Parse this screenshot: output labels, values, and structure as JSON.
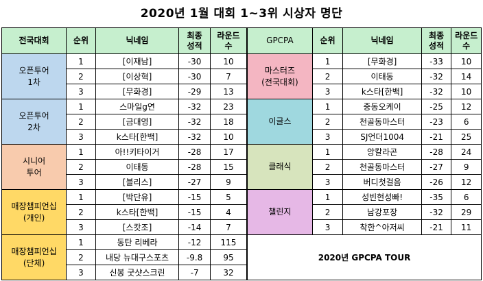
{
  "title": "2020년 1월 대회 1~3위 시상자 명단",
  "footer": "2020년 GPCPA TOUR",
  "left_headers": [
    "전국대회",
    "순위",
    "닉네임",
    "최종\n성적",
    "라운드\n수"
  ],
  "right_headers": [
    "GPCPA",
    "순위",
    "닉네임",
    "최종\n성적",
    "라운드\n수"
  ],
  "left_groups": [
    {
      "name": "오픈투어\n1차",
      "color": "#bdd7ee",
      "rows": [
        {
          "rank": "1",
          "nick": "[이재남]",
          "score": "-30",
          "rounds": "10"
        },
        {
          "rank": "2",
          "nick": "[이상혁]",
          "score": "-30",
          "rounds": "7"
        },
        {
          "rank": "3",
          "nick": "[무화경]",
          "score": "-29",
          "rounds": "13"
        }
      ]
    },
    {
      "name": "오픈투어\n2차",
      "color": "#bdd7ee",
      "rows": [
        {
          "rank": "1",
          "nick": "스마일g연",
          "score": "-32",
          "rounds": "23"
        },
        {
          "rank": "2",
          "nick": "[금대영]",
          "score": "-32",
          "rounds": "18"
        },
        {
          "rank": "3",
          "nick": "k스타[한백]",
          "score": "-32",
          "rounds": "10"
        }
      ]
    },
    {
      "name": "시니어\n투어",
      "color": "#f8cbad",
      "rows": [
        {
          "rank": "1",
          "nick": "아!!키타이거",
          "score": "-28",
          "rounds": "17"
        },
        {
          "rank": "2",
          "nick": "이태동",
          "score": "-28",
          "rounds": "15"
        },
        {
          "rank": "3",
          "nick": "[블리스]",
          "score": "-27",
          "rounds": "9"
        }
      ]
    },
    {
      "name": "매장챔피언십\n(개인)",
      "color": "#ffd966",
      "rows": [
        {
          "rank": "1",
          "nick": "[박단유]",
          "score": "-15",
          "rounds": "5"
        },
        {
          "rank": "2",
          "nick": "k스타[한백]",
          "score": "-15",
          "rounds": "4"
        },
        {
          "rank": "3",
          "nick": "[스캇조]",
          "score": "-14",
          "rounds": "7"
        }
      ]
    },
    {
      "name": "매장챔피언십\n(단체)",
      "color": "#ffd966",
      "rows": [
        {
          "rank": "1",
          "nick": "동탄 리베라",
          "score": "-12",
          "rounds": "115"
        },
        {
          "rank": "2",
          "nick": "내당 뉴대구스포츠",
          "score": "-9.8",
          "rounds": "95"
        },
        {
          "rank": "3",
          "nick": "신봉 굿샷스크린",
          "score": "-7",
          "rounds": "32"
        }
      ]
    }
  ],
  "right_groups": [
    {
      "name": "마스터즈\n(전국대회)",
      "color": "#f4b6c2",
      "rows": [
        {
          "rank": "1",
          "nick": "[무화경]",
          "score": "-33",
          "rounds": "10"
        },
        {
          "rank": "2",
          "nick": "이태동",
          "score": "-32",
          "rounds": "14"
        },
        {
          "rank": "3",
          "nick": "k스타[한백]",
          "score": "-32",
          "rounds": "10"
        }
      ]
    },
    {
      "name": "이글스",
      "color": "#9fd8df",
      "rows": [
        {
          "rank": "1",
          "nick": "중동오케이",
          "score": "-25",
          "rounds": "12"
        },
        {
          "rank": "2",
          "nick": "천골동마스터",
          "score": "-23",
          "rounds": "6"
        },
        {
          "rank": "3",
          "nick": "SJ언더1004",
          "score": "-21",
          "rounds": "25"
        }
      ]
    },
    {
      "name": "클래식",
      "color": "#d7e4bd",
      "rows": [
        {
          "rank": "1",
          "nick": "앙칼라곤",
          "score": "-28",
          "rounds": "24"
        },
        {
          "rank": "2",
          "nick": "천골동마스터",
          "score": "-27",
          "rounds": "9"
        },
        {
          "rank": "3",
          "nick": "버디첫걸음",
          "score": "-26",
          "rounds": "12"
        }
      ]
    },
    {
      "name": "챌린지",
      "color": "#e6b8e6",
      "rows": [
        {
          "rank": "1",
          "nick": "성빈현성빠!",
          "score": "-35",
          "rounds": "6"
        },
        {
          "rank": "2",
          "nick": "남강포장",
          "score": "-32",
          "rounds": "29"
        },
        {
          "rank": "3",
          "nick": "착한^아저씨",
          "score": "-21",
          "rounds": "11"
        }
      ]
    }
  ]
}
